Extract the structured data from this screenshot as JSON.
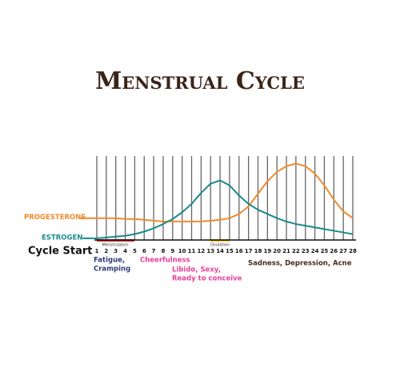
{
  "chart_data": {
    "type": "line",
    "title": "Menstrual Cycle",
    "x": [
      1,
      2,
      3,
      4,
      5,
      6,
      7,
      8,
      9,
      10,
      11,
      12,
      13,
      14,
      15,
      16,
      17,
      18,
      19,
      20,
      21,
      22,
      23,
      24,
      25,
      26,
      27,
      28
    ],
    "xlim": [
      1,
      28
    ],
    "xticks": [
      1,
      2,
      3,
      4,
      5,
      6,
      7,
      8,
      9,
      10,
      11,
      12,
      13,
      14,
      15,
      16,
      17,
      18,
      19,
      20,
      21,
      22,
      23,
      24,
      25,
      26,
      27,
      28
    ],
    "ylim": [
      0,
      100
    ],
    "grid": true,
    "x_label": "Cycle Start",
    "series": [
      {
        "name": "PROGESTERONE",
        "color": "#f08a2c",
        "values": [
          26,
          26,
          26,
          25,
          25,
          24,
          23,
          22,
          22,
          22,
          22,
          22,
          23,
          24,
          26,
          31,
          40,
          55,
          70,
          81,
          88,
          91,
          88,
          79,
          65,
          48,
          34,
          26
        ]
      },
      {
        "name": "ESTROGEN",
        "color": "#1a8a8c",
        "values": [
          2,
          3,
          4,
          5,
          7,
          10,
          14,
          19,
          25,
          33,
          43,
          56,
          67,
          71,
          65,
          53,
          43,
          36,
          31,
          26,
          22,
          19,
          17,
          15,
          13,
          11,
          9,
          7
        ]
      }
    ],
    "phase_labels": [
      "Menstruation",
      "Ovulation"
    ],
    "annotations": [
      {
        "lines": [
          "Fatigue,",
          "Cramping"
        ],
        "color": "#2b3a78"
      },
      {
        "lines": [
          "Cheerfulness"
        ],
        "color": "#e8409a"
      },
      {
        "lines": [
          "Libido, Sexy,",
          "Ready to conceive"
        ],
        "color": "#e8409a"
      },
      {
        "lines": [
          "Sadness, Depression, Acne"
        ],
        "color": "#4a2a1a"
      }
    ]
  }
}
